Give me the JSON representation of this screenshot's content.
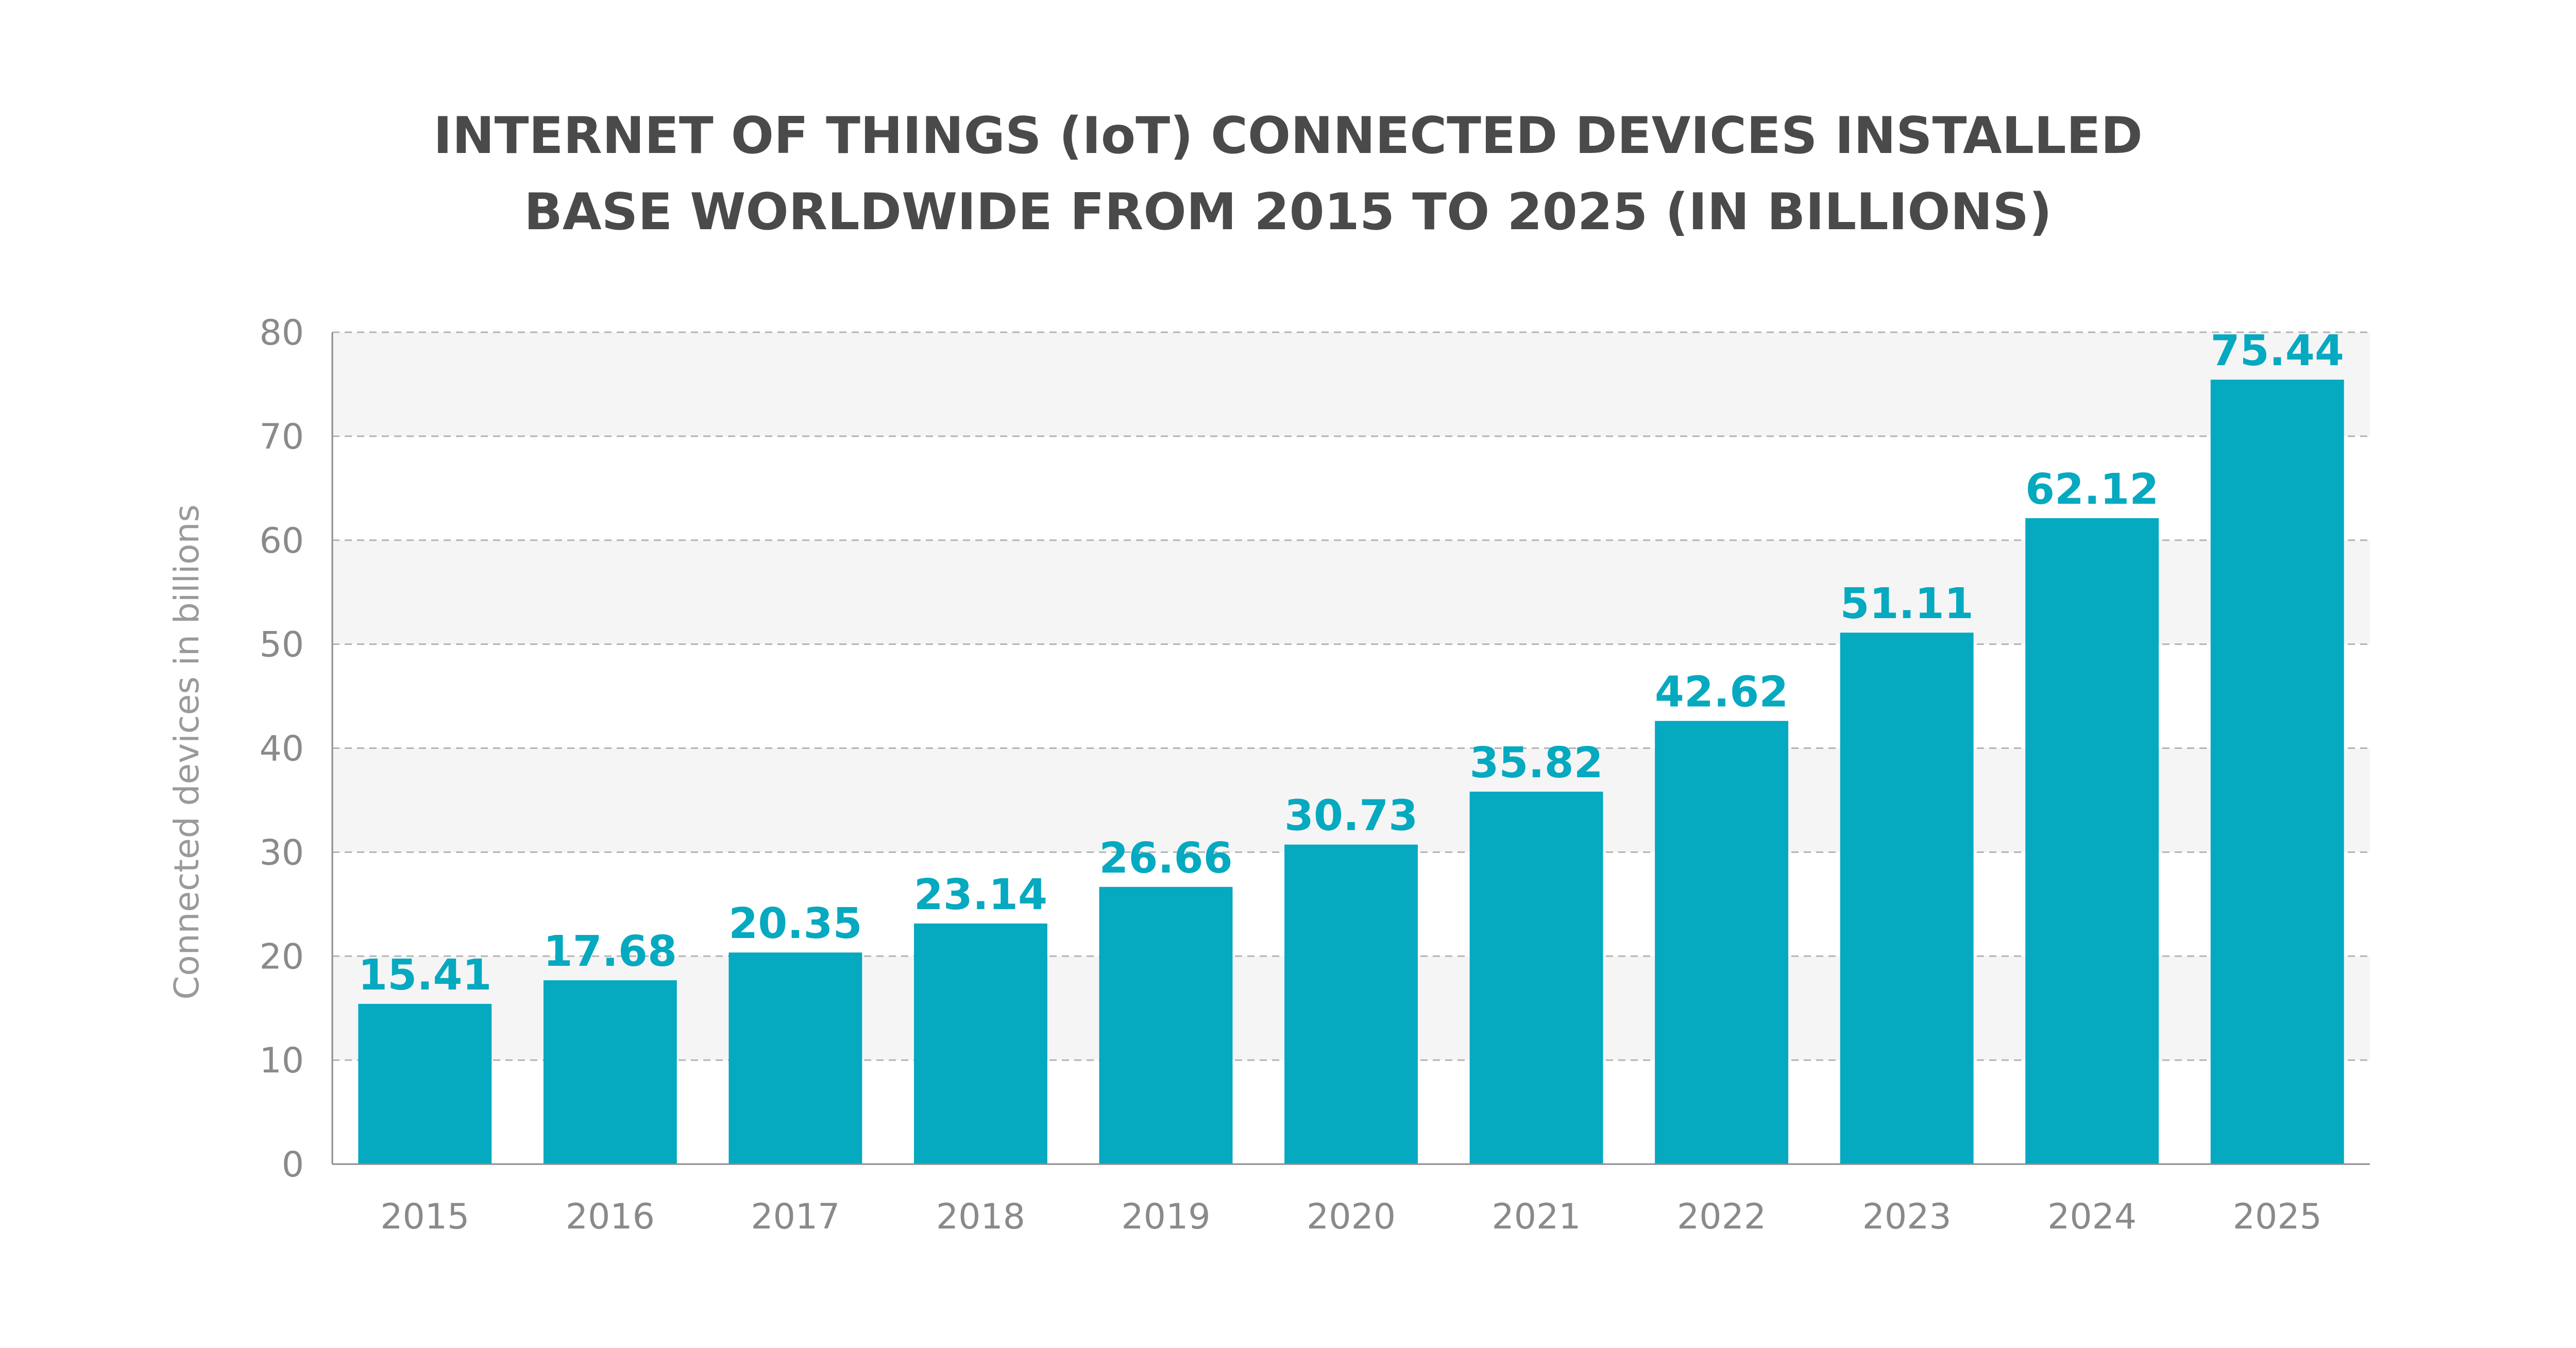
{
  "chart_data": {
    "type": "bar",
    "title_lines": [
      "INTERNET OF THINGS (IoT) CONNECTED DEVICES INSTALLED",
      "BASE WORLDWIDE FROM 2015 TO 2025 (IN BILLIONS)"
    ],
    "xlabel": "",
    "ylabel": "Connected devices in billions",
    "categories": [
      "2015",
      "2016",
      "2017",
      "2018",
      "2019",
      "2020",
      "2021",
      "2022",
      "2023",
      "2024",
      "2025"
    ],
    "values": [
      15.41,
      17.68,
      20.35,
      23.14,
      26.66,
      30.73,
      35.82,
      42.62,
      51.11,
      62.12,
      75.44
    ],
    "data_labels": [
      "15.41",
      "17.68",
      "20.35",
      "23.14",
      "26.66",
      "30.73",
      "35.82",
      "42.62",
      "51.11",
      "62.12",
      "75.44"
    ],
    "ylim": [
      0,
      80
    ],
    "yticks": [
      0,
      10,
      20,
      30,
      40,
      50,
      60,
      70,
      80
    ],
    "grid": "horizontal dashed",
    "legend": "none",
    "colors": {
      "bar": "#05a9c0",
      "label": "#05a9c0",
      "band": "#f5f5f5",
      "grid": "#b4b4b4",
      "axis": "#8c8c8c",
      "title": "#4a4a4a"
    }
  }
}
